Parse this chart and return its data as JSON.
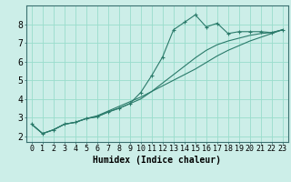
{
  "bg_color": "#cceee8",
  "grid_color": "#99ddcc",
  "line_color": "#2a7a6a",
  "xlabel": "Humidex (Indice chaleur)",
  "xlabel_fontsize": 7,
  "tick_fontsize": 6,
  "ylabel_ticks": [
    2,
    3,
    4,
    5,
    6,
    7,
    8
  ],
  "xlim": [
    -0.5,
    23.5
  ],
  "ylim": [
    1.7,
    9.0
  ],
  "line1_x": [
    0,
    1,
    2,
    3,
    4,
    5,
    6,
    7,
    8,
    9,
    10,
    11,
    12,
    13,
    14,
    15,
    16,
    17,
    18,
    19,
    20,
    21,
    22,
    23
  ],
  "line1_y": [
    2.65,
    2.15,
    2.35,
    2.65,
    2.75,
    2.95,
    3.05,
    3.3,
    3.5,
    3.75,
    4.35,
    5.25,
    6.25,
    7.7,
    8.1,
    8.5,
    7.85,
    8.05,
    7.5,
    7.6,
    7.6,
    7.6,
    7.55,
    7.7
  ],
  "line2_x": [
    0,
    1,
    2,
    3,
    4,
    5,
    6,
    7,
    8,
    9,
    10,
    11,
    12,
    13,
    14,
    15,
    16,
    17,
    18,
    19,
    20,
    21,
    22,
    23
  ],
  "line2_y": [
    2.65,
    2.15,
    2.35,
    2.65,
    2.75,
    2.95,
    3.05,
    3.3,
    3.5,
    3.75,
    4.0,
    4.4,
    4.85,
    5.3,
    5.75,
    6.2,
    6.6,
    6.9,
    7.1,
    7.25,
    7.4,
    7.5,
    7.55,
    7.7
  ],
  "line3_x": [
    0,
    1,
    2,
    3,
    4,
    5,
    6,
    7,
    8,
    9,
    10,
    11,
    12,
    13,
    14,
    15,
    16,
    17,
    18,
    19,
    20,
    21,
    22,
    23
  ],
  "line3_y": [
    2.65,
    2.15,
    2.35,
    2.65,
    2.75,
    2.95,
    3.1,
    3.35,
    3.6,
    3.85,
    4.1,
    4.4,
    4.7,
    5.0,
    5.3,
    5.6,
    5.95,
    6.3,
    6.6,
    6.85,
    7.1,
    7.3,
    7.5,
    7.7
  ]
}
